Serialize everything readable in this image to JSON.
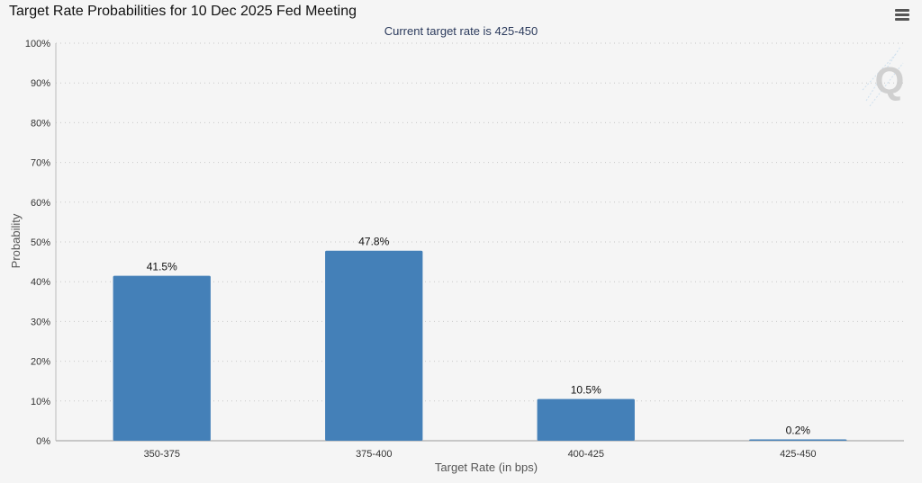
{
  "header": {
    "title": "Target Rate Probabilities for 10 Dec 2025 Fed Meeting",
    "menu_icon": "hamburger-menu-icon"
  },
  "watermark": {
    "letter": "Q"
  },
  "colors": {
    "bar": "#4480b8",
    "grid": "#c8c8c8",
    "background": "#f5f5f5"
  },
  "chart_data": {
    "type": "bar",
    "title": "Target Rate Probabilities for 10 Dec 2025 Fed Meeting",
    "subtitle": "Current target rate is 425-450",
    "xlabel": "Target Rate (in bps)",
    "ylabel": "Probability",
    "categories": [
      "350-375",
      "375-400",
      "400-425",
      "425-450"
    ],
    "values": [
      41.5,
      47.8,
      10.5,
      0.2
    ],
    "data_labels": [
      "41.5%",
      "47.8%",
      "10.5%",
      "0.2%"
    ],
    "ylim": [
      0,
      100
    ],
    "yticks": [
      "0%",
      "10%",
      "20%",
      "30%",
      "40%",
      "50%",
      "60%",
      "70%",
      "80%",
      "90%",
      "100%"
    ],
    "grid": true,
    "legend": "none"
  }
}
